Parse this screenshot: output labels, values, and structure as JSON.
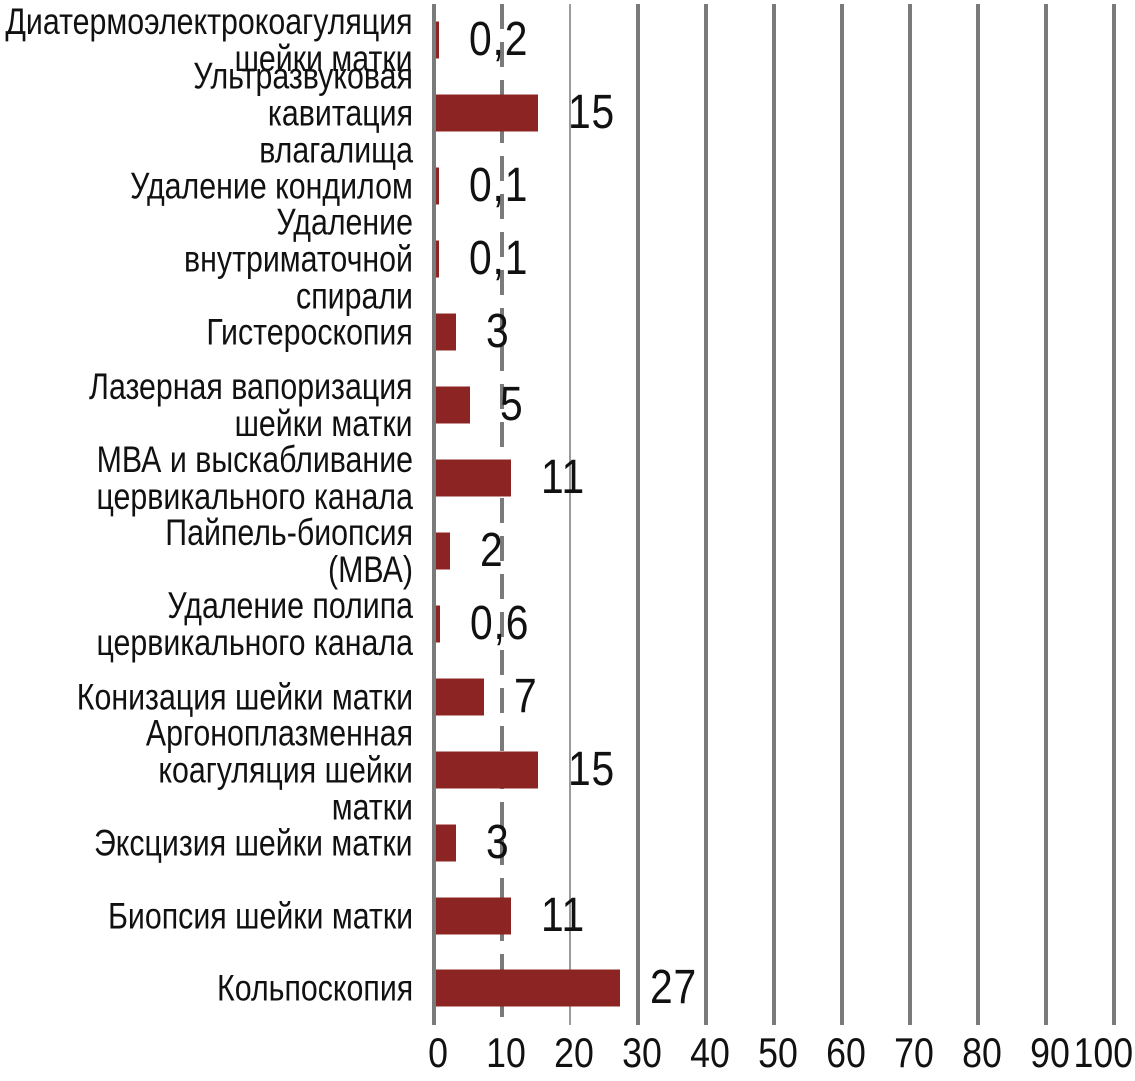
{
  "chart_data": {
    "type": "bar",
    "orientation": "horizontal",
    "title": "",
    "xlabel": "",
    "ylabel": "",
    "grid": "vertical-major",
    "legend": "none",
    "xlim": [
      0,
      100
    ],
    "x_ticks": [
      0,
      10,
      20,
      30,
      40,
      50,
      60,
      70,
      80,
      90,
      100
    ],
    "dashed_gridline_at_value": 10,
    "thin_gridline_at_value": 20,
    "bar_color": "#8d2424",
    "grid_color": "#7a7a7a",
    "text_color": "#111111",
    "decimal_separator": ",",
    "categories": [
      "Диатермоэлектрокоагуляция\nшейки матки",
      "Ультразвуковая кавитация\nвлагалища",
      "Удаление кондилом",
      "Удаление внутриматочной\nспирали",
      "Гистероскопия",
      "Лазерная вапоризация\nшейки матки",
      "МВА и выскабливание\nцервикального канала",
      "Пайпель-биопсия (МВА)",
      "Удаление полипа\nцервикального канала",
      "Конизация шейки матки",
      "Аргоноплазменная\nкоагуляция шейки матки",
      "Эксцизия шейки матки",
      "Биопсия шейки матки",
      "Кольпоскопия"
    ],
    "values": [
      0.2,
      15,
      0.1,
      0.1,
      3,
      5,
      11,
      2,
      0.6,
      7,
      15,
      3,
      11,
      27
    ],
    "value_labels": [
      "0,2",
      "15",
      "0,1",
      "0,1",
      "3",
      "5",
      "11",
      "2",
      "0,6",
      "7",
      "15",
      "3",
      "11",
      "27"
    ]
  }
}
